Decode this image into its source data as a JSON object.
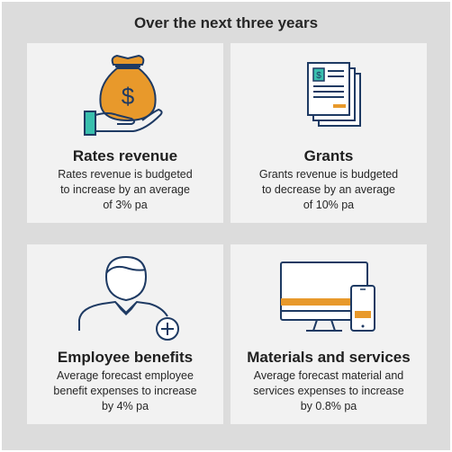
{
  "title": "Over the next three years",
  "cards": [
    {
      "heading": "Rates revenue",
      "body": [
        "Rates revenue is budgeted",
        "to increase by an average",
        "of 3% pa"
      ],
      "icon": "money-bag-hand-icon"
    },
    {
      "heading": "Grants",
      "body": [
        "Grants revenue is budgeted",
        "to decrease by an average",
        "of  10% pa"
      ],
      "icon": "documents-icon"
    },
    {
      "heading": "Employee benefits",
      "body": [
        "Average forecast employee",
        "benefit expenses to increase",
        "by 4% pa"
      ],
      "icon": "person-add-icon"
    },
    {
      "heading": "Materials and services",
      "body": [
        "Average forecast material and",
        "services expenses to increase",
        "by 0.8% pa"
      ],
      "icon": "devices-icon"
    }
  ],
  "colors": {
    "navy": "#1e3a63",
    "orange": "#e8992b",
    "teal": "#39bfae",
    "card": "#f2f2f2",
    "background": "#dcdcdc"
  }
}
